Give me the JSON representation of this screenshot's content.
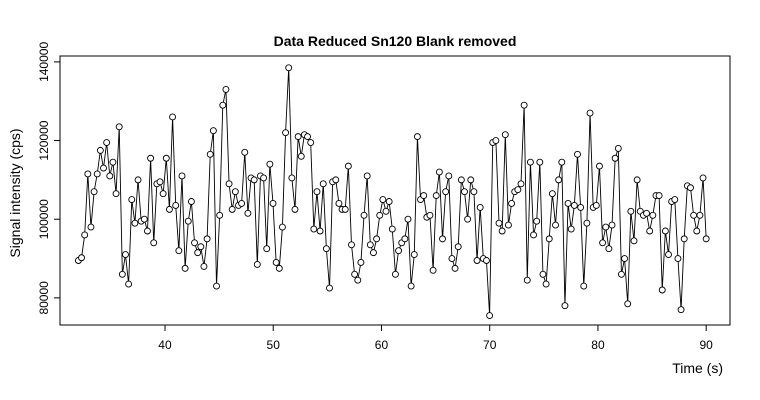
{
  "chart_data": {
    "type": "line",
    "markers": true,
    "title": "Data Reduced Sn120 Blank removed",
    "x_label": "Time (s)",
    "y_label": "Signal intensity (cps)",
    "xlim": [
      30.3,
      92.2
    ],
    "ylim": [
      73100,
      141500
    ],
    "xticks": [
      40,
      50,
      60,
      70,
      80,
      90
    ],
    "yticks": [
      80000,
      100000,
      120000,
      140000
    ],
    "grid": false,
    "x": [
      32.0,
      32.29,
      32.58,
      32.87,
      33.16,
      33.45,
      33.74,
      34.03,
      34.32,
      34.61,
      34.9,
      35.19,
      35.48,
      35.77,
      36.06,
      36.35,
      36.64,
      36.93,
      37.22,
      37.51,
      37.8,
      38.09,
      38.38,
      38.67,
      38.96,
      39.25,
      39.54,
      39.83,
      40.12,
      40.41,
      40.7,
      40.99,
      41.28,
      41.57,
      41.86,
      42.15,
      42.44,
      42.73,
      43.02,
      43.31,
      43.6,
      43.89,
      44.18,
      44.47,
      44.76,
      45.05,
      45.34,
      45.63,
      45.92,
      46.21,
      46.5,
      46.79,
      47.08,
      47.37,
      47.66,
      47.95,
      48.24,
      48.53,
      48.82,
      49.11,
      49.4,
      49.69,
      49.98,
      50.27,
      50.56,
      50.85,
      51.14,
      51.43,
      51.72,
      52.01,
      52.3,
      52.59,
      52.88,
      53.17,
      53.46,
      53.75,
      54.04,
      54.33,
      54.62,
      54.91,
      55.2,
      55.49,
      55.78,
      56.07,
      56.36,
      56.65,
      56.94,
      57.23,
      57.52,
      57.81,
      58.1,
      58.39,
      58.68,
      58.97,
      59.26,
      59.55,
      59.84,
      60.13,
      60.42,
      60.71,
      61.0,
      61.29,
      61.58,
      61.87,
      62.16,
      62.45,
      62.74,
      63.03,
      63.32,
      63.61,
      63.9,
      64.19,
      64.48,
      64.77,
      65.06,
      65.35,
      65.64,
      65.93,
      66.22,
      66.51,
      66.8,
      67.09,
      67.38,
      67.67,
      67.96,
      68.25,
      68.54,
      68.83,
      69.12,
      69.41,
      69.7,
      69.99,
      70.28,
      70.57,
      70.86,
      71.15,
      71.44,
      71.73,
      72.02,
      72.31,
      72.6,
      72.89,
      73.18,
      73.47,
      73.76,
      74.05,
      74.34,
      74.63,
      74.92,
      75.21,
      75.5,
      75.79,
      76.08,
      76.37,
      76.66,
      76.95,
      77.24,
      77.53,
      77.82,
      78.11,
      78.4,
      78.69,
      78.98,
      79.27,
      79.56,
      79.85,
      80.14,
      80.43,
      80.72,
      81.01,
      81.3,
      81.59,
      81.88,
      82.17,
      82.46,
      82.75,
      83.04,
      83.33,
      83.62,
      83.91,
      84.2,
      84.49,
      84.78,
      85.07,
      85.36,
      85.65,
      85.94,
      86.23,
      86.52,
      86.81,
      87.1,
      87.39,
      87.68,
      87.97,
      88.26,
      88.55,
      88.84,
      89.13,
      89.42,
      89.71,
      90.0
    ],
    "series": [
      {
        "color": "#000000",
        "values": [
          89500,
          90200,
          96000,
          111500,
          98000,
          107000,
          111500,
          117500,
          113000,
          119500,
          111000,
          114500,
          106500,
          123500,
          86000,
          91000,
          83500,
          105000,
          99000,
          110000,
          99500,
          100000,
          97000,
          115500,
          94000,
          109000,
          109500,
          106500,
          115500,
          102500,
          126000,
          103500,
          92000,
          111000,
          87500,
          99500,
          104500,
          94000,
          91500,
          93000,
          88000,
          95000,
          116500,
          122500,
          83000,
          101000,
          129000,
          133000,
          109000,
          102500,
          107000,
          103500,
          104000,
          117000,
          101500,
          110500,
          110000,
          88500,
          111000,
          110500,
          92500,
          114000,
          104000,
          89000,
          87500,
          98000,
          122000,
          138500,
          110500,
          102500,
          121000,
          116000,
          121500,
          121000,
          119500,
          97500,
          107000,
          97000,
          109000,
          92500,
          82500,
          109500,
          110000,
          104000,
          102500,
          102500,
          113500,
          93500,
          86000,
          84500,
          89000,
          101000,
          111000,
          93500,
          91500,
          95000,
          101000,
          105000,
          102000,
          104500,
          97500,
          86000,
          92000,
          94000,
          95000,
          100000,
          83000,
          91000,
          121000,
          105000,
          106000,
          100500,
          101000,
          87000,
          106000,
          112000,
          95000,
          107000,
          111000,
          90000,
          87500,
          93000,
          110000,
          107000,
          100000,
          110000,
          107000,
          89500,
          103000,
          90000,
          89500,
          75500,
          119500,
          120000,
          99000,
          97000,
          121500,
          98500,
          104000,
          107000,
          107500,
          109000,
          129000,
          84500,
          114500,
          96000,
          99500,
          114500,
          86000,
          83500,
          95000,
          106500,
          98500,
          110000,
          114500,
          78000,
          104000,
          97500,
          103500,
          116500,
          103000,
          83000,
          99000,
          127000,
          103000,
          103500,
          113500,
          94000,
          98000,
          92500,
          98500,
          115500,
          118000,
          86000,
          90000,
          78500,
          102000,
          94500,
          110000,
          102000,
          101000,
          101500,
          97000,
          101000,
          106000,
          106000,
          82000,
          97000,
          91000,
          104500,
          105000,
          90000,
          77000,
          95000,
          108500,
          108000,
          101000,
          97000,
          101000,
          110500,
          95000
        ]
      }
    ]
  }
}
